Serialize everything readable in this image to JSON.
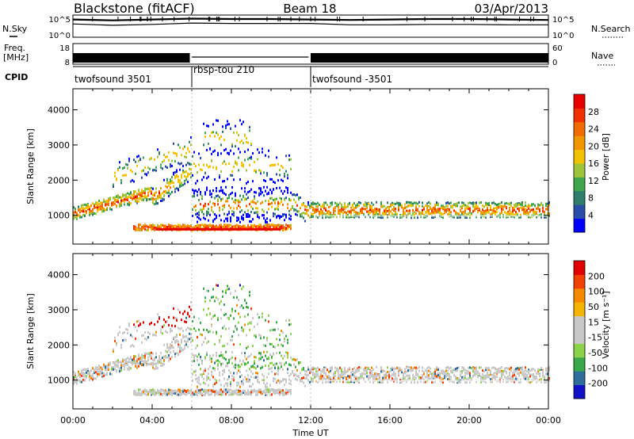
{
  "header": {
    "station": "Blackstone (fitACF)",
    "beam": "Beam 18",
    "date": "03/Apr/2013"
  },
  "labels": {
    "nsky": "N.Sky",
    "freq_line1": "Freq.",
    "freq_line2": "[MHz]",
    "cpid": "CPID",
    "nsearch": "N.Search",
    "nave": "Nave",
    "nsky_tick_hi": "10^5",
    "nsky_tick_lo": "10^0",
    "freq_tick_hi": "18",
    "freq_tick_lo": "8",
    "nave_tick_hi": "60",
    "nave_tick_lo": "0",
    "x_axis_title": "Time UT"
  },
  "colors": {
    "power_scale": [
      "#0000ff",
      "#2a4ea8",
      "#2f7d6b",
      "#3fa64f",
      "#9ec43a",
      "#f2c200",
      "#f29600",
      "#f26b00",
      "#f03000",
      "#e80000"
    ],
    "velocity_scale": [
      "#e00000",
      "#f24000",
      "#f58a00",
      "#f5b400",
      "#c8c8c8",
      "#c8c8c8",
      "#8cd24a",
      "#39a84a",
      "#2e6e9a",
      "#1010c8"
    ]
  },
  "chart_data": [
    {
      "type": "line",
      "panel": "sky-noise",
      "ylabel": "N.Sky",
      "right_label": "N.Search",
      "y_ticks": [
        "10^5",
        "10^0"
      ],
      "x_range_hours": [
        0,
        24
      ],
      "series": [
        {
          "points": [
            [
              0,
              4.0
            ],
            [
              2,
              3.8
            ],
            [
              4,
              4.0
            ],
            [
              6,
              4.2
            ],
            [
              8,
              4.1
            ],
            [
              10,
              4.1
            ],
            [
              12,
              4.0
            ],
            [
              14,
              3.9
            ],
            [
              16,
              4.0
            ],
            [
              18,
              4.1
            ],
            [
              20,
              4.1
            ],
            [
              22,
              4.0
            ],
            [
              24,
              3.9
            ]
          ]
        },
        {
          "points": [
            [
              0,
              3.0
            ],
            [
              2,
              2.7
            ],
            [
              4,
              2.9
            ],
            [
              6,
              3.2
            ],
            [
              8,
              3.1
            ],
            [
              10,
              3.1
            ],
            [
              12,
              3.1
            ],
            [
              14,
              2.8
            ],
            [
              16,
              2.8
            ],
            [
              18,
              2.9
            ],
            [
              20,
              2.9
            ],
            [
              22,
              2.8
            ],
            [
              24,
              2.8
            ]
          ]
        }
      ]
    },
    {
      "type": "area",
      "panel": "frequency",
      "ylabel": "Freq. [MHz]",
      "right_label": "Nave",
      "y_ticks": [
        "18",
        "8"
      ],
      "right_ticks": [
        "60",
        "0"
      ],
      "segments_hours": [
        [
          0,
          5.9
        ],
        [
          6.0,
          11.9
        ],
        [
          12.0,
          24
        ]
      ],
      "segment_levels": [
        1.0,
        0.05,
        1.0
      ]
    },
    {
      "type": "table",
      "panel": "cpid",
      "ylabel": "CPID",
      "entries": [
        {
          "start_hour": 0,
          "label": "twofsound 3501"
        },
        {
          "start_hour": 6,
          "label": "rbsp-tou 210"
        },
        {
          "start_hour": 12,
          "label": "twofsound -3501"
        }
      ]
    },
    {
      "type": "heatmap",
      "panel": "power",
      "ylabel": "Slant Range [km]",
      "y_ticks": [
        1000,
        2000,
        3000,
        4000
      ],
      "ylim": [
        180,
        4600
      ],
      "xlim_hours": [
        0,
        24
      ],
      "colorbar_label": "Power [dB]",
      "colorbar_ticks": [
        4,
        8,
        12,
        16,
        20,
        24,
        28
      ]
    },
    {
      "type": "heatmap",
      "panel": "velocity",
      "ylabel": "Slant Range [km]",
      "y_ticks": [
        1000,
        2000,
        3000,
        4000
      ],
      "ylim": [
        180,
        4600
      ],
      "xlim_hours": [
        0,
        24
      ],
      "x_tick_labels": [
        "00:00",
        "04:00",
        "08:00",
        "12:00",
        "16:00",
        "20:00",
        "00:00"
      ],
      "xlabel": "Time UT",
      "colorbar_label": "Velocity [m s⁻¹]",
      "colorbar_ticks": [
        200,
        100,
        50,
        15,
        -15,
        -50,
        -100,
        -200
      ]
    }
  ]
}
